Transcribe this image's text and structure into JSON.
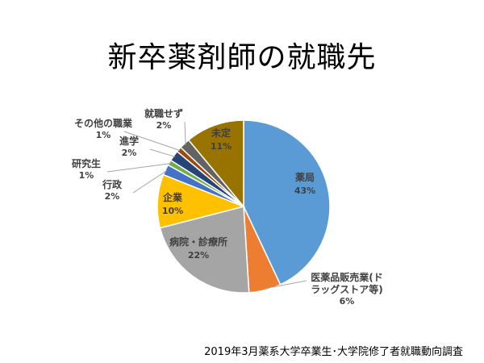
{
  "chart_data": {
    "type": "pie",
    "title": "新卒薬剤師の就職先",
    "source_note": "2019年3月薬系大学卒業生･大学院修了者就職動向調査",
    "slices": [
      {
        "label": "薬局",
        "label_line2": "",
        "value": 43,
        "value_text": "43%",
        "color": "#5b9bd5"
      },
      {
        "label": "医薬品販売業(ド",
        "label_line2": "ラッグストア等)",
        "value": 6,
        "value_text": "6%",
        "color": "#ed7d31"
      },
      {
        "label": "病院・診療所",
        "label_line2": "",
        "value": 22,
        "value_text": "22%",
        "color": "#a5a5a5"
      },
      {
        "label": "企業",
        "label_line2": "",
        "value": 10,
        "value_text": "10%",
        "color": "#ffc000"
      },
      {
        "label": "行政",
        "label_line2": "",
        "value": 2,
        "value_text": "2%",
        "color": "#4472c4"
      },
      {
        "label": "研究生",
        "label_line2": "",
        "value": 1,
        "value_text": "1%",
        "color": "#70ad47"
      },
      {
        "label": "進学",
        "label_line2": "",
        "value": 2,
        "value_text": "2%",
        "color": "#264478"
      },
      {
        "label": "その他の職業",
        "label_line2": "",
        "value": 1,
        "value_text": "1%",
        "color": "#9e480e"
      },
      {
        "label": "就職せず",
        "label_line2": "",
        "value": 2,
        "value_text": "2%",
        "color": "#636363"
      },
      {
        "label": "未定",
        "label_line2": "",
        "value": 11,
        "value_text": "11%",
        "color": "#997300"
      }
    ]
  }
}
